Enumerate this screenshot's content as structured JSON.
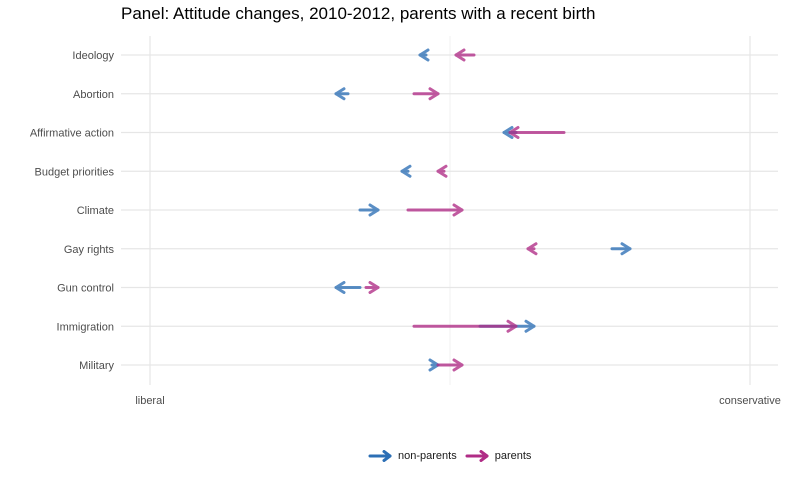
{
  "chart_data": {
    "type": "arrow-dumbbell",
    "title": "Panel: Attitude changes, 2010-2012, parents with a recent birth",
    "xlabel": "",
    "ylabel": "",
    "xlim": [
      0,
      1
    ],
    "x_tick_labels": [
      "liberal",
      "conservative"
    ],
    "x_tick_values": [
      0,
      1
    ],
    "gridlines": true,
    "legend_position": "bottom",
    "categories": [
      "Ideology",
      "Abortion",
      "Affirmative action",
      "Budget priorities",
      "Climate",
      "Gay rights",
      "Gun control",
      "Immigration",
      "Military"
    ],
    "series": [
      {
        "name": "non-parents",
        "color": "#2c6fb5",
        "from": [
          0.46,
          0.33,
          0.61,
          0.43,
          0.35,
          0.77,
          0.35,
          0.55,
          0.47
        ],
        "to": [
          0.45,
          0.31,
          0.59,
          0.42,
          0.38,
          0.8,
          0.31,
          0.64,
          0.48
        ]
      },
      {
        "name": "parents",
        "color": "#b02c86",
        "from": [
          0.54,
          0.44,
          0.69,
          0.49,
          0.43,
          0.64,
          0.36,
          0.44,
          0.48
        ],
        "to": [
          0.51,
          0.48,
          0.6,
          0.48,
          0.52,
          0.63,
          0.38,
          0.61,
          0.52
        ]
      }
    ]
  }
}
